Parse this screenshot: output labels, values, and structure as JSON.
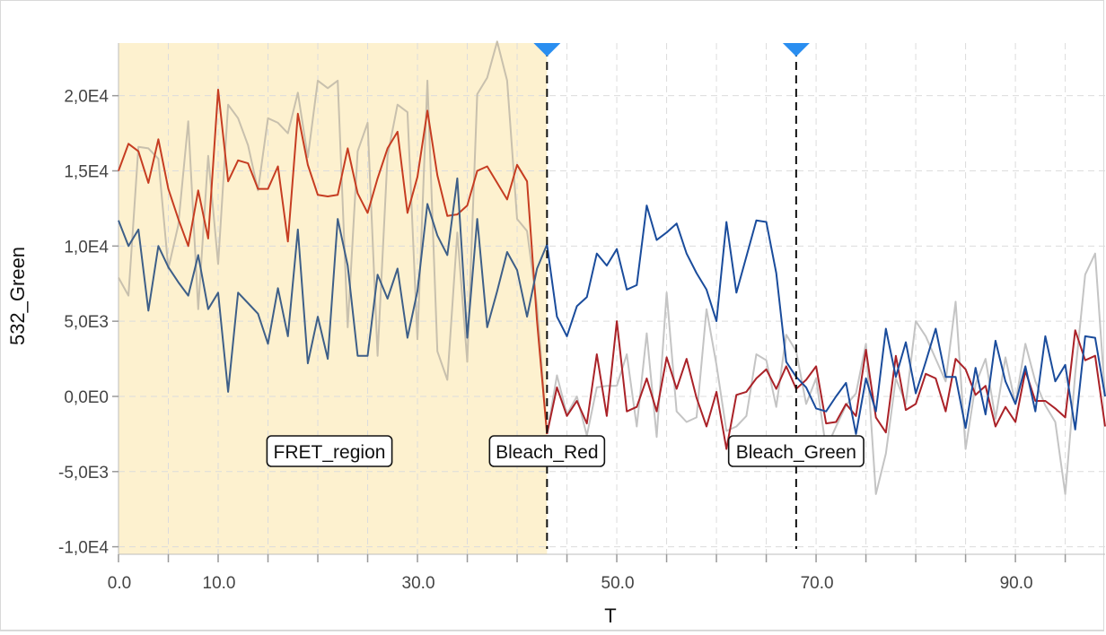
{
  "chart_data": {
    "type": "line",
    "xlabel": "T",
    "ylabel": "532_Green",
    "xlim": [
      0,
      99
    ],
    "ylim": [
      -10500,
      23500
    ],
    "x_ticks": [
      {
        "value": 0,
        "label": "0.0"
      },
      {
        "value": 10,
        "label": "10.0"
      },
      {
        "value": 30,
        "label": "30.0"
      },
      {
        "value": 50,
        "label": "50.0"
      },
      {
        "value": 70,
        "label": "70.0"
      },
      {
        "value": 90,
        "label": "90.0"
      }
    ],
    "x_minor_ticks": [
      5,
      15,
      20,
      25,
      35,
      40,
      45,
      55,
      60,
      65,
      75,
      80,
      85,
      95
    ],
    "y_ticks": [
      {
        "value": 20000,
        "label": "2,0E4"
      },
      {
        "value": 15000,
        "label": "1,5E4"
      },
      {
        "value": 10000,
        "label": "1,0E4"
      },
      {
        "value": 5000,
        "label": "5,0E3"
      },
      {
        "value": 0,
        "label": "0,0E0"
      },
      {
        "value": -5000,
        "label": "-5,0E3"
      },
      {
        "value": -10000,
        "label": "-1,0E4"
      }
    ],
    "grid": true,
    "region": {
      "label": "FRET_region",
      "x_start": 0,
      "x_end": 43,
      "color": "#fdf1cf"
    },
    "markers": [
      {
        "label": "Bleach_Red",
        "x": 43,
        "color": "#2a8ef0"
      },
      {
        "label": "Bleach_Green",
        "x": 68,
        "color": "#2a8ef0"
      }
    ],
    "series": [
      {
        "color": "#c8c0ad",
        "color_after_bleach": "#c4c4c4",
        "change_x": 43,
        "x": [
          0,
          1,
          2,
          3,
          4,
          5,
          6,
          7,
          8,
          9,
          10,
          11,
          12,
          13,
          14,
          15,
          16,
          17,
          18,
          19,
          20,
          21,
          22,
          23,
          24,
          25,
          26,
          27,
          28,
          29,
          30,
          31,
          32,
          33,
          34,
          35,
          36,
          37,
          38,
          39,
          40,
          41,
          42,
          43,
          44,
          45,
          46,
          47,
          48,
          49,
          50,
          51,
          52,
          53,
          54,
          55,
          56,
          57,
          58,
          59,
          60,
          61,
          62,
          63,
          64,
          65,
          66,
          67,
          68,
          69,
          70,
          71,
          72,
          73,
          74,
          75,
          76,
          77,
          78,
          79,
          80,
          81,
          82,
          83,
          84,
          85,
          86,
          87,
          88,
          89,
          90,
          91,
          92,
          93,
          94,
          95,
          96,
          97,
          98,
          99
        ],
        "y": [
          7900,
          6700,
          16600,
          16500,
          15800,
          8500,
          11400,
          18300,
          5800,
          16000,
          8800,
          19400,
          18500,
          16700,
          13700,
          18500,
          18200,
          17500,
          20200,
          15900,
          21000,
          20500,
          21000,
          4600,
          16300,
          18200,
          2700,
          16000,
          19400,
          18900,
          3800,
          21000,
          3000,
          1100,
          10900,
          2300,
          20100,
          21200,
          23600,
          21000,
          11800,
          11000,
          6000,
          -2500,
          1400,
          -1200,
          0,
          -2600,
          600,
          700,
          700,
          2800,
          -2000,
          4200,
          -2700,
          6900,
          -1000,
          -1700,
          -1400,
          5800,
          2100,
          -2300,
          -2000,
          -1300,
          2800,
          2400,
          -700,
          4100,
          3000,
          -500,
          1200,
          -3500,
          -2000,
          -600,
          200,
          3500,
          -6500,
          -3800,
          1200,
          -500,
          5000,
          4000,
          2500,
          1000,
          6300,
          -3500,
          800,
          2500,
          -1500,
          2600,
          -500,
          3500,
          1000,
          -600,
          -1700,
          -6500,
          1500,
          8100,
          9500,
          0
        ]
      },
      {
        "color": "#c63d22",
        "color_after_bleach": "#aa2228",
        "change_x": 43,
        "x": [
          0,
          1,
          2,
          3,
          4,
          5,
          6,
          7,
          8,
          9,
          10,
          11,
          12,
          13,
          14,
          15,
          16,
          17,
          18,
          19,
          20,
          21,
          22,
          23,
          24,
          25,
          26,
          27,
          28,
          29,
          30,
          31,
          32,
          33,
          34,
          35,
          36,
          37,
          38,
          39,
          40,
          41,
          42,
          43,
          44,
          45,
          46,
          47,
          48,
          49,
          50,
          51,
          52,
          53,
          54,
          55,
          56,
          57,
          58,
          59,
          60,
          61,
          62,
          63,
          64,
          65,
          66,
          67,
          68,
          69,
          70,
          71,
          72,
          73,
          74,
          75,
          76,
          77,
          78,
          79,
          80,
          81,
          82,
          83,
          84,
          85,
          86,
          87,
          88,
          89,
          90,
          91,
          92,
          93,
          94,
          95,
          96,
          97,
          98,
          99
        ],
        "y": [
          15000,
          16800,
          16300,
          14200,
          17100,
          13800,
          11800,
          10000,
          13700,
          10500,
          20400,
          14300,
          15700,
          15500,
          13800,
          13800,
          15300,
          10300,
          18800,
          15400,
          13400,
          13300,
          13400,
          16500,
          13500,
          12200,
          14500,
          16500,
          17600,
          12200,
          14600,
          19000,
          14700,
          12000,
          12100,
          12700,
          15000,
          15300,
          14200,
          13100,
          15400,
          14300,
          5000,
          -2500,
          600,
          -1300,
          -300,
          -1800,
          2800,
          -1300,
          5000,
          -1000,
          -700,
          1200,
          -1000,
          2600,
          500,
          2500,
          -100,
          -2000,
          300,
          -3500,
          100,
          300,
          1200,
          1800,
          500,
          2000,
          500,
          1100,
          2000,
          -1800,
          -1700,
          -500,
          -1300,
          3100,
          -1400,
          -2400,
          2700,
          -900,
          -500,
          1500,
          1200,
          -1000,
          2500,
          1800,
          100,
          700,
          -2000,
          -700,
          -1700,
          1700,
          -300,
          -300,
          -800,
          -1400,
          4400,
          2400,
          2700,
          -2000
        ]
      },
      {
        "color": "#3e5f88",
        "color_after_bleach": "#1a4c9c",
        "change_x": 43,
        "x": [
          0,
          1,
          2,
          3,
          4,
          5,
          6,
          7,
          8,
          9,
          10,
          11,
          12,
          13,
          14,
          15,
          16,
          17,
          18,
          19,
          20,
          21,
          22,
          23,
          24,
          25,
          26,
          27,
          28,
          29,
          30,
          31,
          32,
          33,
          34,
          35,
          36,
          37,
          38,
          39,
          40,
          41,
          42,
          43,
          44,
          45,
          46,
          47,
          48,
          49,
          50,
          51,
          52,
          53,
          54,
          55,
          56,
          57,
          58,
          59,
          60,
          61,
          62,
          63,
          64,
          65,
          66,
          67,
          68,
          69,
          70,
          71,
          72,
          73,
          74,
          75,
          76,
          77,
          78,
          79,
          80,
          81,
          82,
          83,
          84,
          85,
          86,
          87,
          88,
          89,
          90,
          91,
          92,
          93,
          94,
          95,
          96,
          97,
          98,
          99
        ],
        "y": [
          11700,
          10000,
          11100,
          5700,
          10000,
          8600,
          7600,
          6700,
          9400,
          5800,
          6900,
          300,
          6900,
          6200,
          5500,
          3500,
          7200,
          4000,
          11100,
          2200,
          5300,
          2500,
          11800,
          8700,
          2700,
          2700,
          8100,
          6500,
          8500,
          3900,
          7000,
          12800,
          10700,
          9400,
          14500,
          3900,
          11800,
          4600,
          7000,
          9600,
          8400,
          5300,
          8500,
          10100,
          5300,
          4000,
          6000,
          6600,
          9500,
          8700,
          9800,
          7100,
          7400,
          12700,
          10400,
          10900,
          11500,
          9500,
          8200,
          7100,
          5000,
          11600,
          6900,
          9300,
          11700,
          11600,
          8200,
          2300,
          1300,
          600,
          -800,
          -1000,
          0,
          900,
          -2500,
          1200,
          -1000,
          4500,
          1300,
          3600,
          200,
          2300,
          4500,
          1300,
          1300,
          -2100,
          1900,
          -1200,
          3700,
          1000,
          -500,
          2000,
          -1000,
          4000,
          1000,
          2100,
          -2200,
          4000,
          3900,
          0
        ]
      }
    ]
  }
}
